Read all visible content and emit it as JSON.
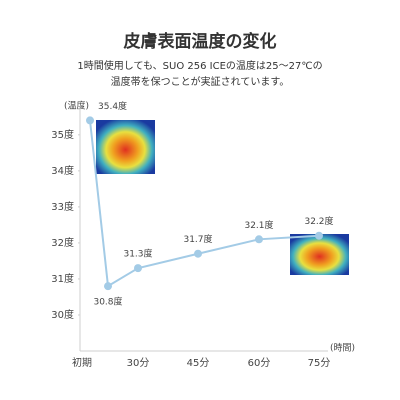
{
  "chart_data": {
    "type": "line",
    "title": "皮膚表面温度の変化",
    "subtitle": [
      "1時間使用しても、SUO 256 ICEの温度は25～27℃の",
      "温度帯を保つことが実証されています。"
    ],
    "y_label": "(温度)",
    "x_label": "(時間)",
    "categories": [
      "初期",
      null,
      "30分",
      "45分",
      "60分",
      "75分"
    ],
    "values": [
      35.4,
      30.8,
      31.3,
      31.7,
      32.1,
      32.2
    ],
    "value_labels": [
      "35.4度",
      "30.8度",
      "31.3度",
      "31.7度",
      "32.1度",
      "32.2度"
    ],
    "color": "#a3cbe6",
    "ylim": [
      29,
      35.8
    ],
    "yticks": [
      {
        "value": 30,
        "label": "30度"
      },
      {
        "value": 31,
        "label": "31度"
      },
      {
        "value": 32,
        "label": "32度"
      },
      {
        "value": 33,
        "label": "33度"
      },
      {
        "value": 34,
        "label": "34度"
      },
      {
        "value": 35,
        "label": "35度"
      }
    ],
    "grid": false
  }
}
